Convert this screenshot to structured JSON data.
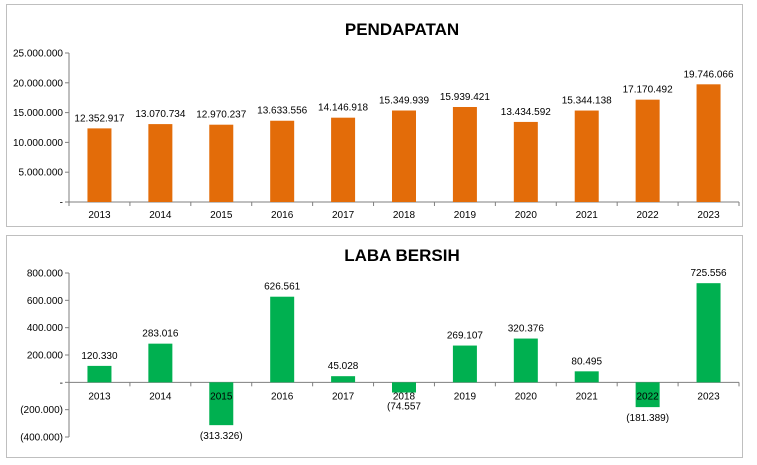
{
  "chart_data": [
    {
      "type": "bar",
      "title": "PENDAPATAN",
      "categories": [
        "2013",
        "2014",
        "2015",
        "2016",
        "2017",
        "2018",
        "2019",
        "2020",
        "2021",
        "2022",
        "2023"
      ],
      "values": [
        12352917,
        13070734,
        12970237,
        13633556,
        14146918,
        15349939,
        15939421,
        13434592,
        15344138,
        17170492,
        19746066
      ],
      "data_labels": [
        "12.352.917",
        "13.070.734",
        "12.970.237",
        "13.633.556",
        "14.146.918",
        "15.349.939",
        "15.939.421",
        "13.434.592",
        "15.344.138",
        "17.170.492",
        "19.746.066"
      ],
      "y_ticks": [
        0,
        5000000,
        10000000,
        15000000,
        20000000,
        25000000
      ],
      "y_tick_labels": [
        "-",
        "5.000.000",
        "10.000.000",
        "15.000.000",
        "20.000.000",
        "25.000.000"
      ],
      "ylim": [
        0,
        25000000
      ],
      "color": "#E36C09",
      "grid": false,
      "legend": "none"
    },
    {
      "type": "bar",
      "title": "LABA BERSIH",
      "categories": [
        "2013",
        "2014",
        "2015",
        "2016",
        "2017",
        "2018",
        "2019",
        "2020",
        "2021",
        "2022",
        "2023"
      ],
      "values": [
        120330,
        283016,
        -313326,
        626561,
        45028,
        -74557,
        269107,
        320376,
        80495,
        -181389,
        725556
      ],
      "data_labels": [
        "120.330",
        "283.016",
        "(313.326)",
        "626.561",
        "45.028",
        "(74.557",
        "269.107",
        "320.376",
        "80.495",
        "(181.389)",
        "725.556"
      ],
      "y_ticks": [
        -400000,
        -200000,
        0,
        200000,
        400000,
        600000,
        800000
      ],
      "y_tick_labels": [
        "(400.000)",
        "(200.000)",
        "-",
        "200.000",
        "400.000",
        "600.000",
        "800.000"
      ],
      "ylim": [
        -400000,
        800000
      ],
      "color": "#00B050",
      "grid": false,
      "legend": "none"
    }
  ]
}
